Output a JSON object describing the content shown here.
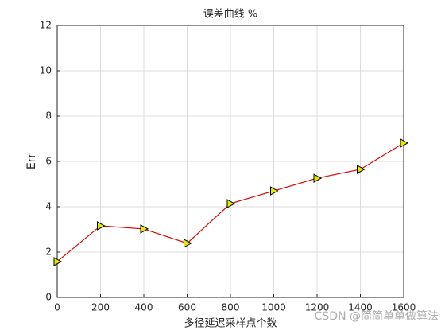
{
  "chart_data": {
    "type": "line",
    "title": "误差曲线 %",
    "xlabel": "多径延迟采样点个数",
    "ylabel": "Err",
    "x": [
      0,
      200,
      400,
      600,
      800,
      1000,
      1200,
      1400,
      1600
    ],
    "values": [
      1.58,
      3.16,
      3.02,
      2.39,
      4.14,
      4.7,
      5.26,
      5.65,
      6.81
    ],
    "color": "#e00000",
    "marker_color": "#e6e600",
    "xlim": [
      0,
      1600
    ],
    "xticks": [
      0,
      200,
      400,
      600,
      800,
      1000,
      1200,
      1400,
      1600
    ],
    "ylim": [
      0,
      12
    ],
    "yticks": [
      0,
      2,
      4,
      6,
      8,
      10,
      12
    ],
    "grid": true,
    "watermark": "CSDN @简简单单做算法"
  }
}
